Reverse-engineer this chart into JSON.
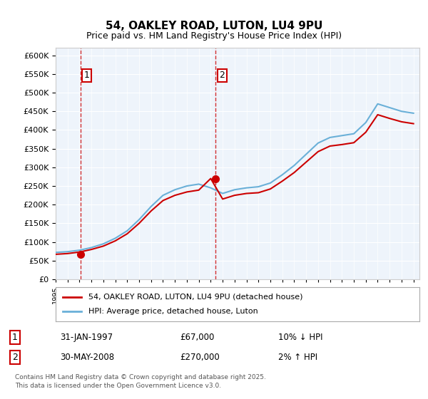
{
  "title": "54, OAKLEY ROAD, LUTON, LU4 9PU",
  "subtitle": "Price paid vs. HM Land Registry's House Price Index (HPI)",
  "ylabel": "",
  "ylim": [
    0,
    620000
  ],
  "yticks": [
    0,
    50000,
    100000,
    150000,
    200000,
    250000,
    300000,
    350000,
    400000,
    450000,
    500000,
    550000,
    600000
  ],
  "xlim_start": 1995.0,
  "xlim_end": 2025.5,
  "background_color": "#eef4fb",
  "plot_bg": "#eef4fb",
  "grid_color": "#ffffff",
  "sale1_x": 1997.08,
  "sale1_y": 67000,
  "sale1_label": "1",
  "sale2_x": 2008.42,
  "sale2_y": 270000,
  "sale2_label": "2",
  "sale_color": "#cc0000",
  "hpi_color": "#6ab0d8",
  "legend_sale": "54, OAKLEY ROAD, LUTON, LU4 9PU (detached house)",
  "legend_hpi": "HPI: Average price, detached house, Luton",
  "annotation1_date": "31-JAN-1997",
  "annotation1_price": "£67,000",
  "annotation1_hpi": "10% ↓ HPI",
  "annotation2_date": "30-MAY-2008",
  "annotation2_price": "£270,000",
  "annotation2_hpi": "2% ↑ HPI",
  "footnote": "Contains HM Land Registry data © Crown copyright and database right 2025.\nThis data is licensed under the Open Government Licence v3.0.",
  "hpi_years": [
    1995,
    1996,
    1997,
    1998,
    1999,
    2000,
    2001,
    2002,
    2003,
    2004,
    2005,
    2006,
    2007,
    2008,
    2009,
    2010,
    2011,
    2012,
    2013,
    2014,
    2015,
    2016,
    2017,
    2018,
    2019,
    2020,
    2021,
    2022,
    2023,
    2024,
    2025
  ],
  "hpi_values": [
    72000,
    74000,
    78000,
    85000,
    95000,
    110000,
    130000,
    160000,
    195000,
    225000,
    240000,
    250000,
    255000,
    245000,
    230000,
    240000,
    245000,
    248000,
    258000,
    280000,
    305000,
    335000,
    365000,
    380000,
    385000,
    390000,
    420000,
    470000,
    460000,
    450000,
    445000
  ],
  "sale_years": [
    1995,
    1996,
    1997,
    1998,
    1999,
    2000,
    2001,
    2002,
    2003,
    2004,
    2005,
    2006,
    2007,
    2008,
    2009,
    2010,
    2011,
    2012,
    2013,
    2014,
    2015,
    2016,
    2017,
    2018,
    2019,
    2020,
    2021,
    2022,
    2023,
    2024,
    2025
  ],
  "sale_indexed": [
    67000,
    69000,
    73000,
    80000,
    89000,
    103000,
    122000,
    150000,
    183000,
    211000,
    225000,
    234000,
    239000,
    270000,
    215000,
    225000,
    230000,
    232000,
    242000,
    263000,
    286000,
    314000,
    342000,
    357000,
    361000,
    366000,
    394000,
    441000,
    431000,
    422000,
    417000
  ]
}
